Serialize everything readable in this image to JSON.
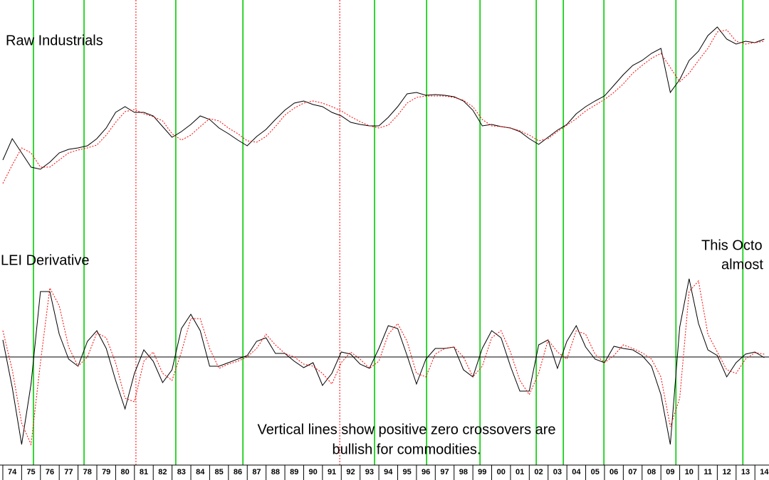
{
  "chart_data": [
    {
      "type": "line",
      "title": "Raw Industrials",
      "x": [
        1974,
        1974.5,
        1975,
        1975.5,
        1976,
        1976.5,
        1977,
        1977.5,
        1978,
        1978.5,
        1979,
        1979.5,
        1980,
        1980.5,
        1981,
        1981.5,
        1982,
        1982.5,
        1983,
        1983.5,
        1984,
        1984.5,
        1985,
        1985.5,
        1986,
        1986.5,
        1987,
        1987.5,
        1988,
        1988.5,
        1989,
        1989.5,
        1990,
        1990.5,
        1991,
        1991.5,
        1992,
        1992.5,
        1993,
        1993.5,
        1994,
        1994.5,
        1995,
        1995.5,
        1996,
        1996.5,
        1997,
        1997.5,
        1998,
        1998.5,
        1999,
        1999.5,
        2000,
        2000.5,
        2001,
        2001.5,
        2002,
        2002.5,
        2003,
        2003.5,
        2004,
        2004.5,
        2005,
        2005.5,
        2006,
        2006.5,
        2007,
        2007.5,
        2008,
        2008.5,
        2009,
        2009.5,
        2010,
        2010.5,
        2011,
        2011.5,
        2012,
        2012.5,
        2013,
        2013.5,
        2014,
        2014.5
      ],
      "xlim": [
        1973.85,
        2014.75
      ],
      "ylim": [
        0,
        300
      ],
      "series": [
        {
          "color": "#000000",
          "dashed": false,
          "values": [
            75,
            105,
            85,
            65,
            62,
            72,
            85,
            90,
            92,
            95,
            105,
            120,
            142,
            150,
            142,
            142,
            137,
            122,
            107,
            115,
            125,
            137,
            132,
            120,
            112,
            103,
            95,
            108,
            118,
            132,
            145,
            155,
            158,
            153,
            150,
            142,
            137,
            128,
            125,
            123,
            123,
            135,
            150,
            168,
            170,
            166,
            167,
            166,
            164,
            158,
            145,
            123,
            125,
            122,
            120,
            115,
            105,
            97,
            107,
            117,
            125,
            140,
            150,
            158,
            165,
            180,
            195,
            208,
            215,
            225,
            232,
            170,
            188,
            215,
            228,
            250,
            262,
            245,
            238,
            242,
            240,
            245
          ]
        },
        {
          "color": "#ff0000",
          "dashed": true,
          "values": [
            42,
            68,
            92,
            85,
            65,
            65,
            75,
            85,
            89,
            92,
            96,
            110,
            128,
            143,
            146,
            140,
            136,
            130,
            112,
            103,
            110,
            122,
            133,
            130,
            120,
            112,
            102,
            100,
            108,
            122,
            138,
            148,
            155,
            158,
            155,
            150,
            144,
            136,
            129,
            123,
            120,
            124,
            138,
            155,
            163,
            165,
            165,
            165,
            163,
            159,
            150,
            132,
            123,
            122,
            120,
            116,
            110,
            102,
            105,
            115,
            124,
            133,
            144,
            152,
            160,
            170,
            182,
            197,
            208,
            218,
            225,
            205,
            185,
            197,
            215,
            232,
            255,
            258,
            242,
            238,
            240,
            242
          ]
        }
      ]
    },
    {
      "type": "line",
      "title": "LEI Derivative",
      "annotations": [
        "This Octo",
        "almost",
        "Vertical lines show positive zero crossovers are",
        "bullish for commodities."
      ],
      "x": [
        1974,
        1974.5,
        1975,
        1975.5,
        1976,
        1976.5,
        1977,
        1977.5,
        1978,
        1978.5,
        1979,
        1979.5,
        1980,
        1980.5,
        1981,
        1981.5,
        1982,
        1982.5,
        1983,
        1983.5,
        1984,
        1984.5,
        1985,
        1985.5,
        1986,
        1986.5,
        1987,
        1987.5,
        1988,
        1988.5,
        1989,
        1989.5,
        1990,
        1990.5,
        1991,
        1991.5,
        1992,
        1992.5,
        1993,
        1993.5,
        1994,
        1994.5,
        1995,
        1995.5,
        1996,
        1996.5,
        1997,
        1997.5,
        1998,
        1998.5,
        1999,
        1999.5,
        2000,
        2000.5,
        2001,
        2001.5,
        2002,
        2002.5,
        2003,
        2003.5,
        2004,
        2004.5,
        2005,
        2005.5,
        2006,
        2006.5,
        2007,
        2007.5,
        2008,
        2008.5,
        2009,
        2009.5,
        2010,
        2010.5,
        2011,
        2011.5,
        2012,
        2012.5,
        2013,
        2013.5,
        2014,
        2014.5
      ],
      "xlim": [
        1973.85,
        2014.75
      ],
      "ylim": [
        -152,
        152
      ],
      "reference_line": 0,
      "xticks": [
        {
          "value": 1974,
          "label": "74"
        },
        {
          "value": 1975,
          "label": "75"
        },
        {
          "value": 1976,
          "label": "76"
        },
        {
          "value": 1977,
          "label": "77"
        },
        {
          "value": 1978,
          "label": "78"
        },
        {
          "value": 1979,
          "label": "79"
        },
        {
          "value": 1980,
          "label": "80"
        },
        {
          "value": 1981,
          "label": "81"
        },
        {
          "value": 1982,
          "label": "82"
        },
        {
          "value": 1983,
          "label": "83"
        },
        {
          "value": 1984,
          "label": "84"
        },
        {
          "value": 1985,
          "label": "85"
        },
        {
          "value": 1986,
          "label": "86"
        },
        {
          "value": 1987,
          "label": "87"
        },
        {
          "value": 1988,
          "label": "88"
        },
        {
          "value": 1989,
          "label": "89"
        },
        {
          "value": 1990,
          "label": "90"
        },
        {
          "value": 1991,
          "label": "91"
        },
        {
          "value": 1992,
          "label": "92"
        },
        {
          "value": 1993,
          "label": "93"
        },
        {
          "value": 1994,
          "label": "94"
        },
        {
          "value": 1995,
          "label": "95"
        },
        {
          "value": 1996,
          "label": "96"
        },
        {
          "value": 1997,
          "label": "97"
        },
        {
          "value": 1998,
          "label": "98"
        },
        {
          "value": 1999,
          "label": "99"
        },
        {
          "value": 2000,
          "label": "00"
        },
        {
          "value": 2001,
          "label": "01"
        },
        {
          "value": 2002,
          "label": "02"
        },
        {
          "value": 2003,
          "label": "03"
        },
        {
          "value": 2004,
          "label": "04"
        },
        {
          "value": 2005,
          "label": "05"
        },
        {
          "value": 2006,
          "label": "06"
        },
        {
          "value": 2007,
          "label": "07"
        },
        {
          "value": 2008,
          "label": "08"
        },
        {
          "value": 2009,
          "label": "09"
        },
        {
          "value": 2010,
          "label": "10"
        },
        {
          "value": 2011,
          "label": "11"
        },
        {
          "value": 2012,
          "label": "12"
        },
        {
          "value": 2013,
          "label": "13"
        },
        {
          "value": 2014,
          "label": "14"
        }
      ],
      "vlines": [
        {
          "x": 1975.63,
          "color": "#00cc00",
          "dashed": false
        },
        {
          "x": 1978.32,
          "color": "#00cc00",
          "dashed": false
        },
        {
          "x": 1981.08,
          "color": "#ff0000",
          "dashed": true
        },
        {
          "x": 1983.2,
          "color": "#00cc00",
          "dashed": false
        },
        {
          "x": 1986.77,
          "color": "#00cc00",
          "dashed": false
        },
        {
          "x": 1991.92,
          "color": "#ff0000",
          "dashed": true
        },
        {
          "x": 1993.77,
          "color": "#00cc00",
          "dashed": false
        },
        {
          "x": 1996.54,
          "color": "#00cc00",
          "dashed": false
        },
        {
          "x": 1999.38,
          "color": "#00cc00",
          "dashed": false
        },
        {
          "x": 2002.37,
          "color": "#00cc00",
          "dashed": false
        },
        {
          "x": 2003.81,
          "color": "#00cc00",
          "dashed": false
        },
        {
          "x": 2005.97,
          "color": "#00cc00",
          "dashed": false
        },
        {
          "x": 2009.8,
          "color": "#00cc00",
          "dashed": false
        },
        {
          "x": 2013.36,
          "color": "#00cc00",
          "dashed": false
        }
      ],
      "series": [
        {
          "color": "#000000",
          "dashed": false,
          "values": [
            24,
            -43,
            -123,
            -38,
            92,
            92,
            32,
            -3,
            -13,
            22,
            37,
            12,
            -33,
            -73,
            -23,
            10,
            -6,
            -36,
            -18,
            40,
            60,
            37,
            -13,
            -13,
            -8,
            -3,
            2,
            22,
            27,
            5,
            5,
            -6,
            -15,
            -8,
            -40,
            -23,
            7,
            4,
            -10,
            -16,
            12,
            44,
            40,
            2,
            -38,
            -3,
            12,
            12,
            14,
            -18,
            -28,
            12,
            37,
            27,
            -13,
            -48,
            -48,
            17,
            24,
            -16,
            22,
            44,
            14,
            -3,
            -8,
            15,
            12,
            10,
            2,
            -13,
            -53,
            -123,
            42,
            110,
            47,
            10,
            2,
            -28,
            -8,
            4,
            7,
            -1
          ]
        },
        {
          "color": "#ff0000",
          "dashed": true,
          "values": [
            37,
            -18,
            -93,
            -123,
            -8,
            97,
            72,
            14,
            -13,
            0,
            34,
            27,
            -8,
            -58,
            -63,
            -6,
            7,
            -23,
            -33,
            7,
            54,
            54,
            12,
            -16,
            -10,
            -6,
            0,
            12,
            32,
            17,
            5,
            0,
            -10,
            -13,
            -23,
            -38,
            -8,
            7,
            -3,
            -16,
            -6,
            32,
            47,
            22,
            -23,
            -28,
            4,
            12,
            14,
            0,
            -28,
            -13,
            27,
            37,
            7,
            -33,
            -53,
            -23,
            24,
            7,
            -3,
            37,
            32,
            4,
            -8,
            2,
            17,
            12,
            6,
            -3,
            -28,
            -98,
            -58,
            92,
            107,
            32,
            7,
            -18,
            -23,
            -3,
            6,
            4
          ]
        }
      ]
    }
  ]
}
